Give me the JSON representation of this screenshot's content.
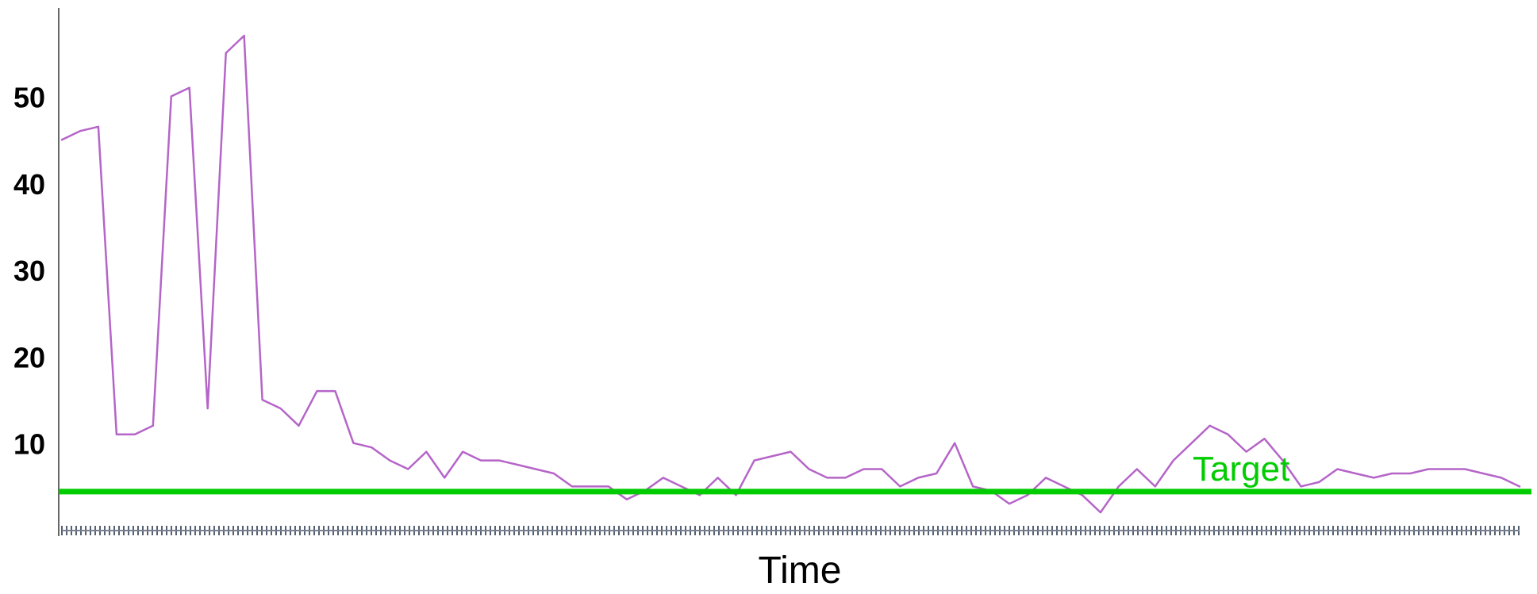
{
  "chart_data": {
    "type": "line",
    "title": "",
    "xlabel": "Time",
    "ylabel": "",
    "ylim": [
      0,
      60
    ],
    "y_ticks": [
      10,
      20,
      30,
      40,
      50
    ],
    "grid": false,
    "annotations": [
      {
        "text": "Target",
        "y": 4.4,
        "color": "#00cc00"
      }
    ],
    "series": [
      {
        "color": "#b565c8",
        "x": [
          0,
          5,
          10,
          15,
          20,
          25,
          30,
          35,
          40,
          45,
          50,
          55,
          60,
          65,
          70,
          75,
          80,
          85,
          90,
          95,
          100,
          105,
          110,
          115,
          120,
          125,
          130,
          135,
          140,
          145,
          150,
          155,
          160,
          165,
          170,
          175,
          180,
          185,
          190,
          195,
          200,
          205,
          210,
          215,
          220,
          225,
          230,
          235,
          240,
          245,
          250,
          255,
          260,
          265,
          270,
          275,
          280,
          285,
          290,
          295,
          300,
          305,
          310,
          315,
          320,
          325,
          330,
          335,
          340,
          345,
          350,
          355,
          360,
          365,
          370,
          375,
          380,
          385,
          390,
          395,
          400
        ],
        "values": [
          45,
          46,
          46.5,
          11,
          11,
          12,
          50,
          51,
          14,
          55,
          57,
          15,
          14,
          12,
          16,
          16,
          10,
          9.5,
          8,
          7,
          9,
          6,
          9,
          8,
          8,
          7.5,
          7,
          6.5,
          5,
          5,
          5,
          3.5,
          4.5,
          6,
          5,
          4,
          6,
          4,
          8,
          8.5,
          9,
          7,
          6,
          6,
          7,
          7,
          5,
          6,
          6.5,
          10,
          5,
          4.5,
          3,
          4,
          6,
          5,
          4,
          2,
          5,
          7,
          5,
          8,
          10,
          12,
          11,
          9,
          10.5,
          8,
          5,
          5.5,
          7,
          6.5,
          6,
          6.5,
          6.5,
          7,
          7,
          7,
          6.5,
          6,
          5
        ]
      }
    ]
  }
}
